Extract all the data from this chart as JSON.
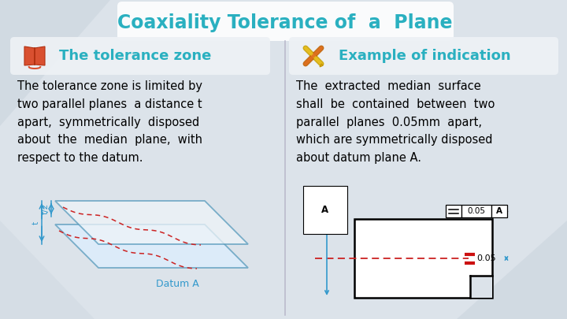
{
  "title": "Coaxiality Tolerance of  a  Plane",
  "title_color": "#2ab0c0",
  "title_fontsize": 17,
  "bg_color": "#dce3ea",
  "left_header": "The tolerance zone",
  "right_header": "Example of indication",
  "header_color": "#2ab0c0",
  "header_fontsize": 13,
  "left_text": "The tolerance zone is limited by\ntwo parallel planes  a distance t\napart,  symmetrically  disposed\nabout  the  median  plane,  with\nrespect to the datum.",
  "right_text": "The  extracted  median  surface\nshall  be  contained  between  two\nparallel  planes  0.05mm  apart,\nwhich are symmetrically disposed\nabout datum plane A.",
  "text_fontsize": 10.5,
  "divider_color": "#bbbbcc",
  "arrow_color": "#3399cc",
  "red_dashed": "#cc2222",
  "tol_label": "0.05",
  "datum_A_label": "Datum A",
  "book_color": "#d95030",
  "bg_circle_color": "#c8d0db",
  "panel_bg": "#edf1f5"
}
